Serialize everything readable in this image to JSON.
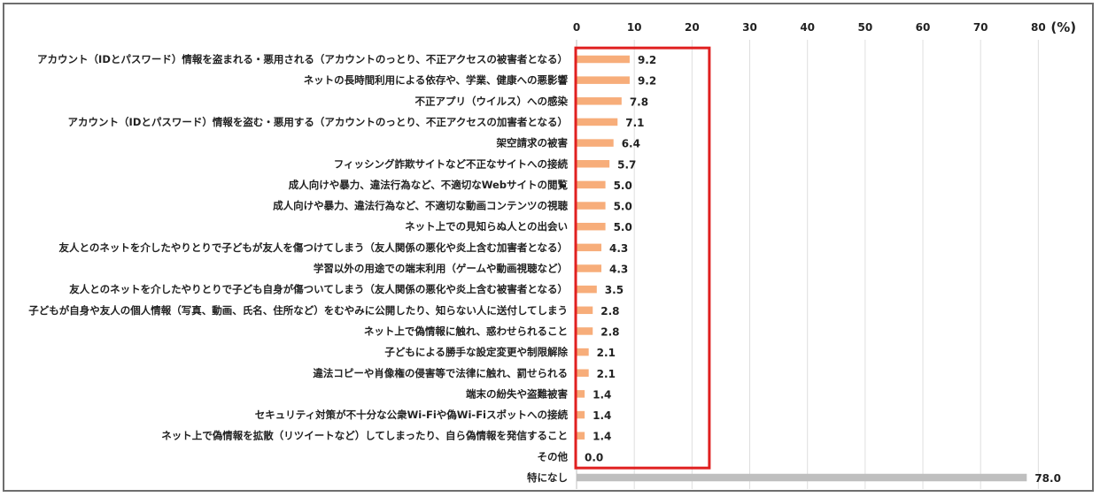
{
  "chart_data": {
    "type": "bar",
    "orientation": "horizontal",
    "unit": "(%)",
    "xlim": [
      0,
      80
    ],
    "ticks": [
      0,
      10,
      20,
      30,
      40,
      50,
      60,
      70,
      80
    ],
    "grid": true,
    "categories": [
      "アカウント（IDとパスワード）情報を盗まれる・悪用される（アカウントのっとり、不正アクセスの被害者となる）",
      "ネットの長時間利用による依存や、学業、健康への悪影響",
      "不正アプリ（ウイルス）への感染",
      "アカウント（IDとパスワード）情報を盗む・悪用する（アカウントのっとり、不正アクセスの加害者となる）",
      "架空請求の被害",
      "フィッシング詐欺サイトなど不正なサイトへの接続",
      "成人向けや暴力、違法行為など、不適切なWebサイトの閲覧",
      "成人向けや暴力、違法行為など、不適切な動画コンテンツの視聴",
      "ネット上での見知らぬ人との出会い",
      "友人とのネットを介したやりとりで子どもが友人を傷つけてしまう（友人関係の悪化や炎上含む加害者となる）",
      "学習以外の用途での端末利用（ゲームや動画視聴など）",
      "友人とのネットを介したやりとりで子ども自身が傷ついてしまう（友人関係の悪化や炎上含む被害者となる）",
      "子どもが自身や友人の個人情報（写真、動画、氏名、住所など）をむやみに公開したり、知らない人に送付してしまう",
      "ネット上で偽情報に触れ、惑わせられること",
      "子どもによる勝手な設定変更や制限解除",
      "違法コピーや肖像権の侵害等で法律に触れ、罰せられる",
      "端末の紛失や盗難被害",
      "セキュリティ対策が不十分な公衆Wi-Fiや偽Wi-Fiスポットへの接続",
      "ネット上で偽情報を拡散（リツイートなど）してしまったり、自ら偽情報を発信すること",
      "その他",
      "特になし"
    ],
    "values": [
      9.2,
      9.2,
      7.8,
      7.1,
      6.4,
      5.7,
      5.0,
      5.0,
      5.0,
      4.3,
      4.3,
      3.5,
      2.8,
      2.8,
      2.1,
      2.1,
      1.4,
      1.4,
      1.4,
      0.0,
      78.0
    ],
    "value_labels": [
      "9.2",
      "9.2",
      "7.8",
      "7.1",
      "6.4",
      "5.7",
      "5.0",
      "5.0",
      "5.0",
      "4.3",
      "4.3",
      "3.5",
      "2.8",
      "2.8",
      "2.1",
      "2.1",
      "1.4",
      "1.4",
      "1.4",
      "0.0",
      "78.0"
    ],
    "bar_color": "#f7ad7a",
    "special_bar_color": "#bfbfbf",
    "highlight_box_color": "#e02020",
    "highlight_range": [
      0,
      23
    ],
    "highlight_rows": [
      0,
      19
    ]
  }
}
